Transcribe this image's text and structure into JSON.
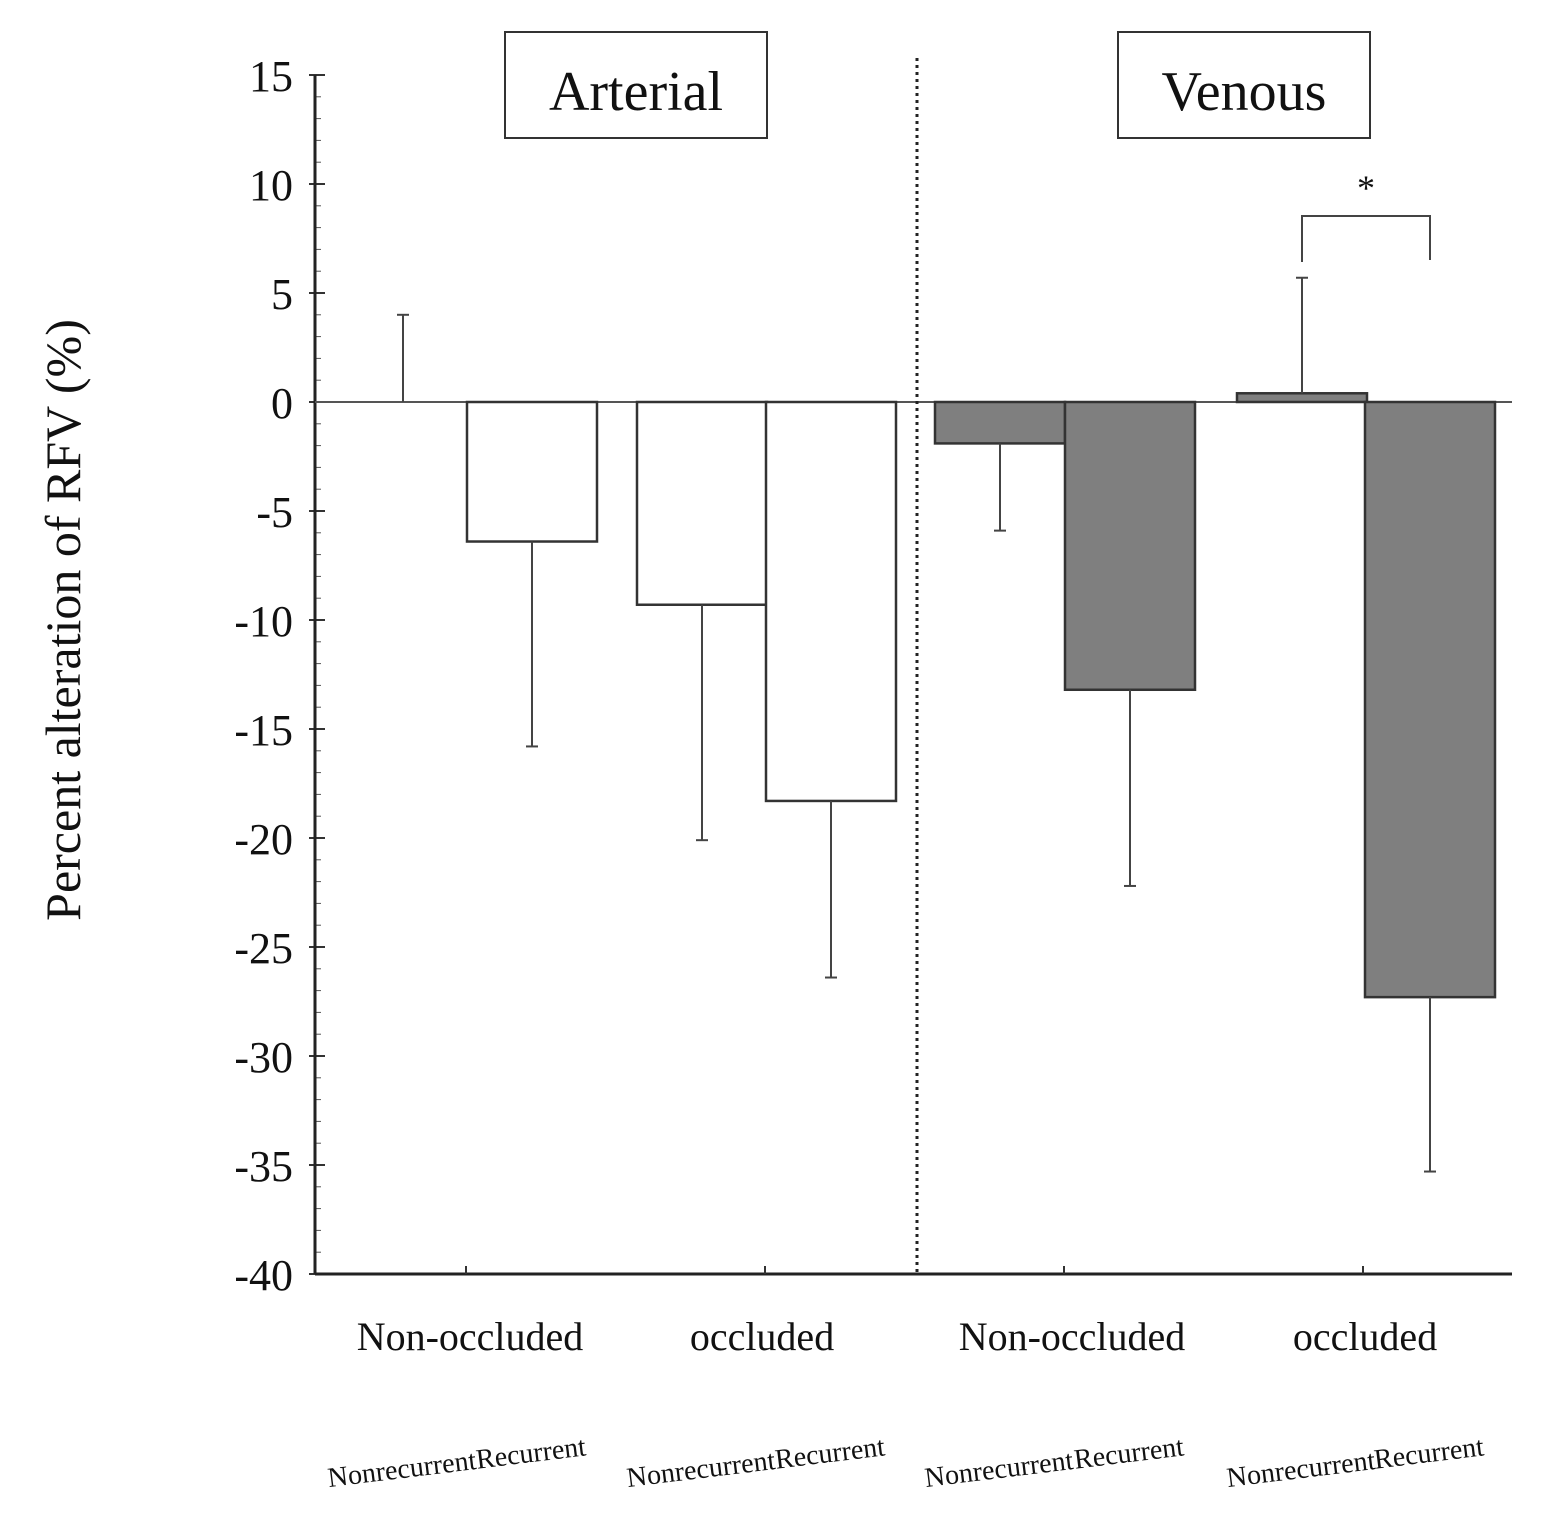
{
  "chart_data": {
    "type": "bar",
    "ylabel": "Percent alteration of RFV (%)",
    "ylim": [
      -40,
      15
    ],
    "yticks": [
      "15",
      "10",
      "5",
      "0",
      "-5",
      "-10",
      "-15",
      "-20",
      "-25",
      "-30",
      "-35",
      "-40"
    ],
    "yticks_values": [
      15,
      10,
      5,
      0,
      -5,
      -10,
      -15,
      -20,
      -25,
      -30,
      -35,
      -40
    ],
    "panels": [
      {
        "title": "Arterial",
        "color": "#ffffff"
      },
      {
        "title": "Venous",
        "color": "#7f7f7f"
      }
    ],
    "groups": [
      "Non-occluded",
      "occluded",
      "Non-occluded",
      "occluded"
    ],
    "categories": [
      "Nonrecurrent",
      "Recurrent",
      "Nonrecurrent",
      "Recurrent",
      "Nonrecurrent",
      "Recurrent",
      "Nonrecurrent",
      "Recurrent"
    ],
    "values": [
      0,
      -6.4,
      -9.3,
      -18.3,
      -1.9,
      -13.2,
      0.4,
      -27.3
    ],
    "error_bars": [
      4.0,
      9.4,
      10.8,
      8.1,
      4.0,
      9.0,
      5.3,
      8.0
    ],
    "significance": {
      "label": "*",
      "between": [
        6,
        7
      ]
    }
  }
}
